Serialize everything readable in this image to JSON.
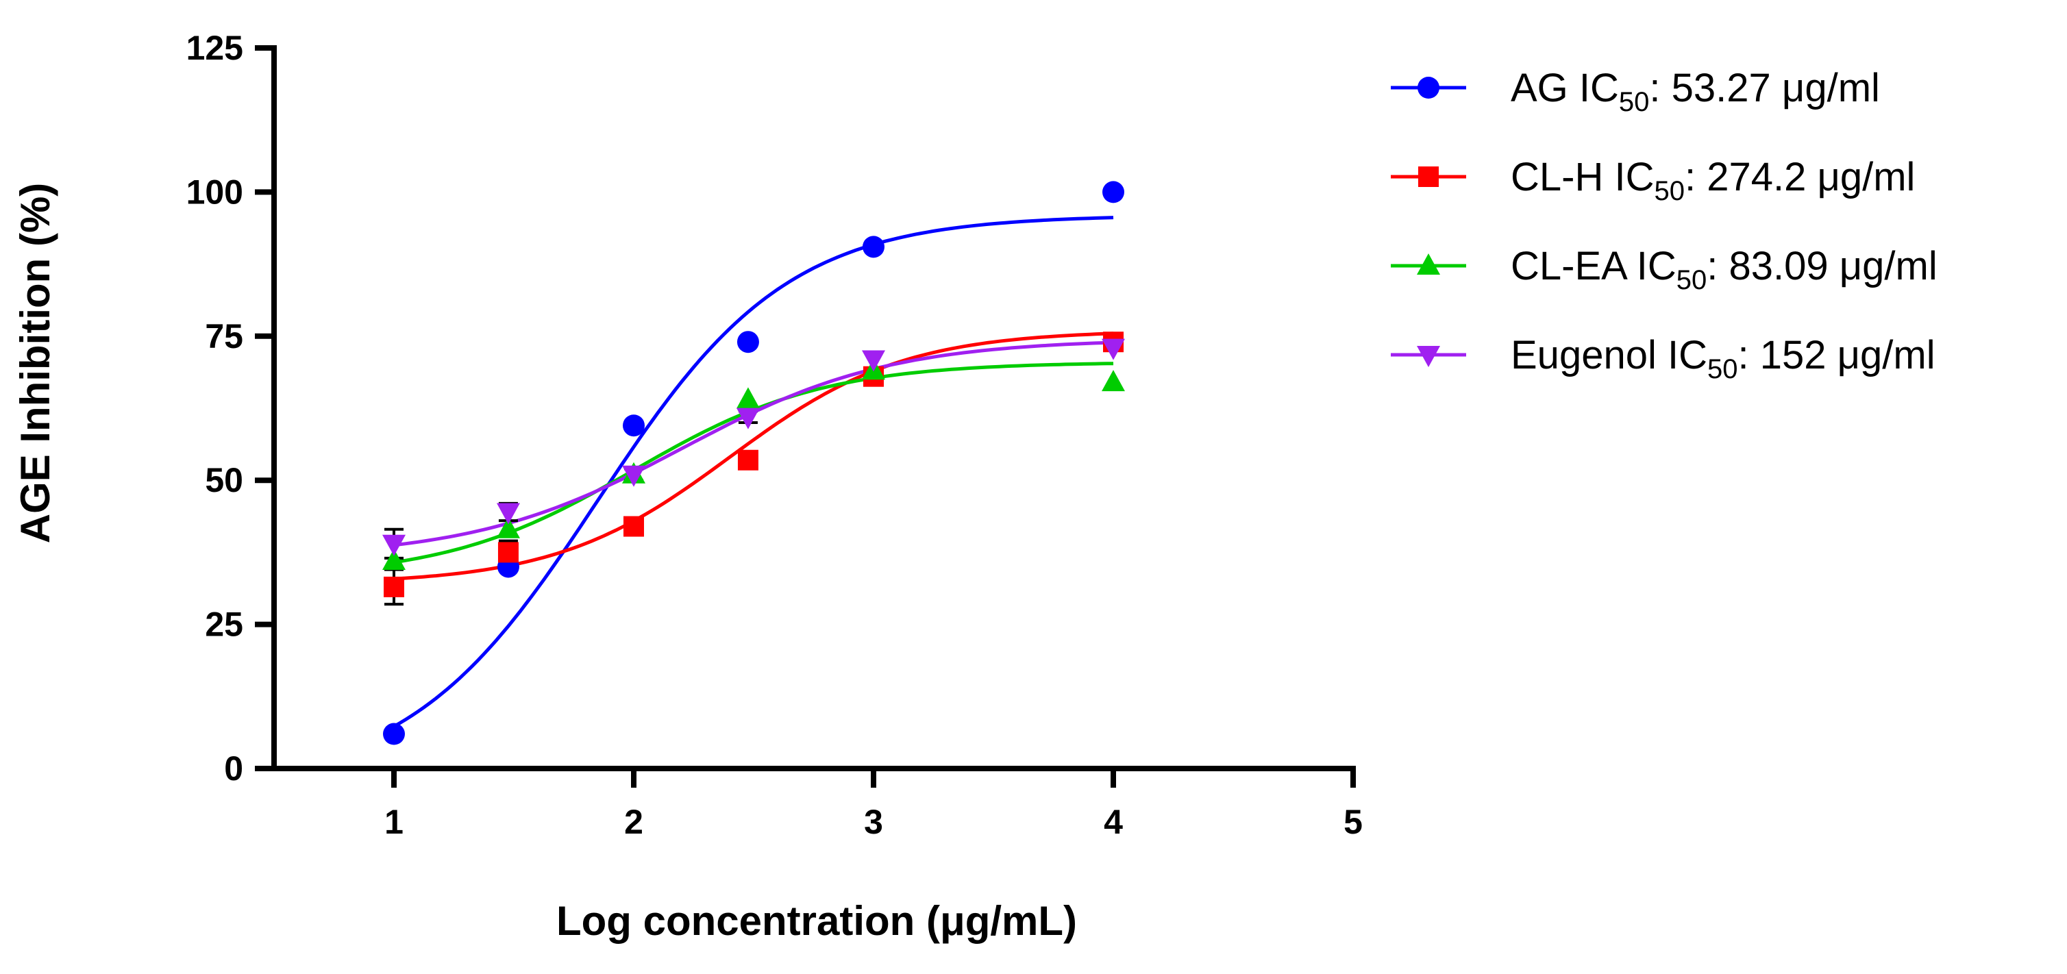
{
  "chart_data": {
    "type": "scatter",
    "title": "",
    "xlabel": "Log concentration (μg/mL)",
    "ylabel": "AGE Inhibition (%)",
    "xlim": [
      0.5,
      5
    ],
    "ylim": [
      0,
      125
    ],
    "xticks": [
      "1",
      "2",
      "3",
      "4",
      "5"
    ],
    "yticks": [
      "0",
      "25",
      "50",
      "75",
      "100",
      "125"
    ],
    "grid": false,
    "legend_position": "right",
    "series": [
      {
        "name": "AG",
        "ic50_value": ": 53.27 μg/ml",
        "color": "#0000ff",
        "marker": "circle",
        "x": [
          1,
          1.477,
          2,
          2.477,
          3,
          4
        ],
        "y": [
          6,
          35,
          59.5,
          74,
          90.5,
          100
        ],
        "fit": {
          "bottom": -3,
          "top": 96,
          "logEC50": 1.85,
          "hill": 1.1
        }
      },
      {
        "name": "CL-H",
        "ic50_value": ": 274.2 μg/ml",
        "color": "#ff0000",
        "marker": "square",
        "x": [
          1,
          1.477,
          2,
          2.477,
          3,
          4
        ],
        "y": [
          31.5,
          37.5,
          42,
          53.5,
          68,
          74
        ],
        "y_err": [
          3,
          2,
          1,
          1.5,
          1,
          0.8
        ],
        "fit": {
          "bottom": 32,
          "top": 76,
          "logEC50": 2.4,
          "hill": 1.2
        }
      },
      {
        "name": "CL-EA",
        "ic50_value": ": 83.09 μg/ml",
        "color": "#00cc00",
        "marker": "triangle-up",
        "x": [
          1,
          1.477,
          2,
          2.477,
          3,
          4
        ],
        "y": [
          36,
          41.5,
          51,
          64,
          69,
          67
        ],
        "fit": {
          "bottom": 33,
          "top": 70.5,
          "logEC50": 2.0,
          "hill": 1.1
        }
      },
      {
        "name": "Eugenol",
        "ic50_value": ": 152 μg/ml",
        "color": "#a020f0",
        "marker": "triangle-down",
        "x": [
          1,
          1.477,
          2,
          2.477,
          3,
          4
        ],
        "y": [
          39,
          44.5,
          51,
          61,
          71,
          73
        ],
        "y_err": [
          2.5,
          1.5,
          1,
          1,
          0.8,
          0.5
        ],
        "fit": {
          "bottom": 36.5,
          "top": 74.5,
          "logEC50": 2.2,
          "hill": 1.0
        }
      }
    ]
  },
  "legend": {
    "ic_label": "IC",
    "ic_sub": "50"
  }
}
